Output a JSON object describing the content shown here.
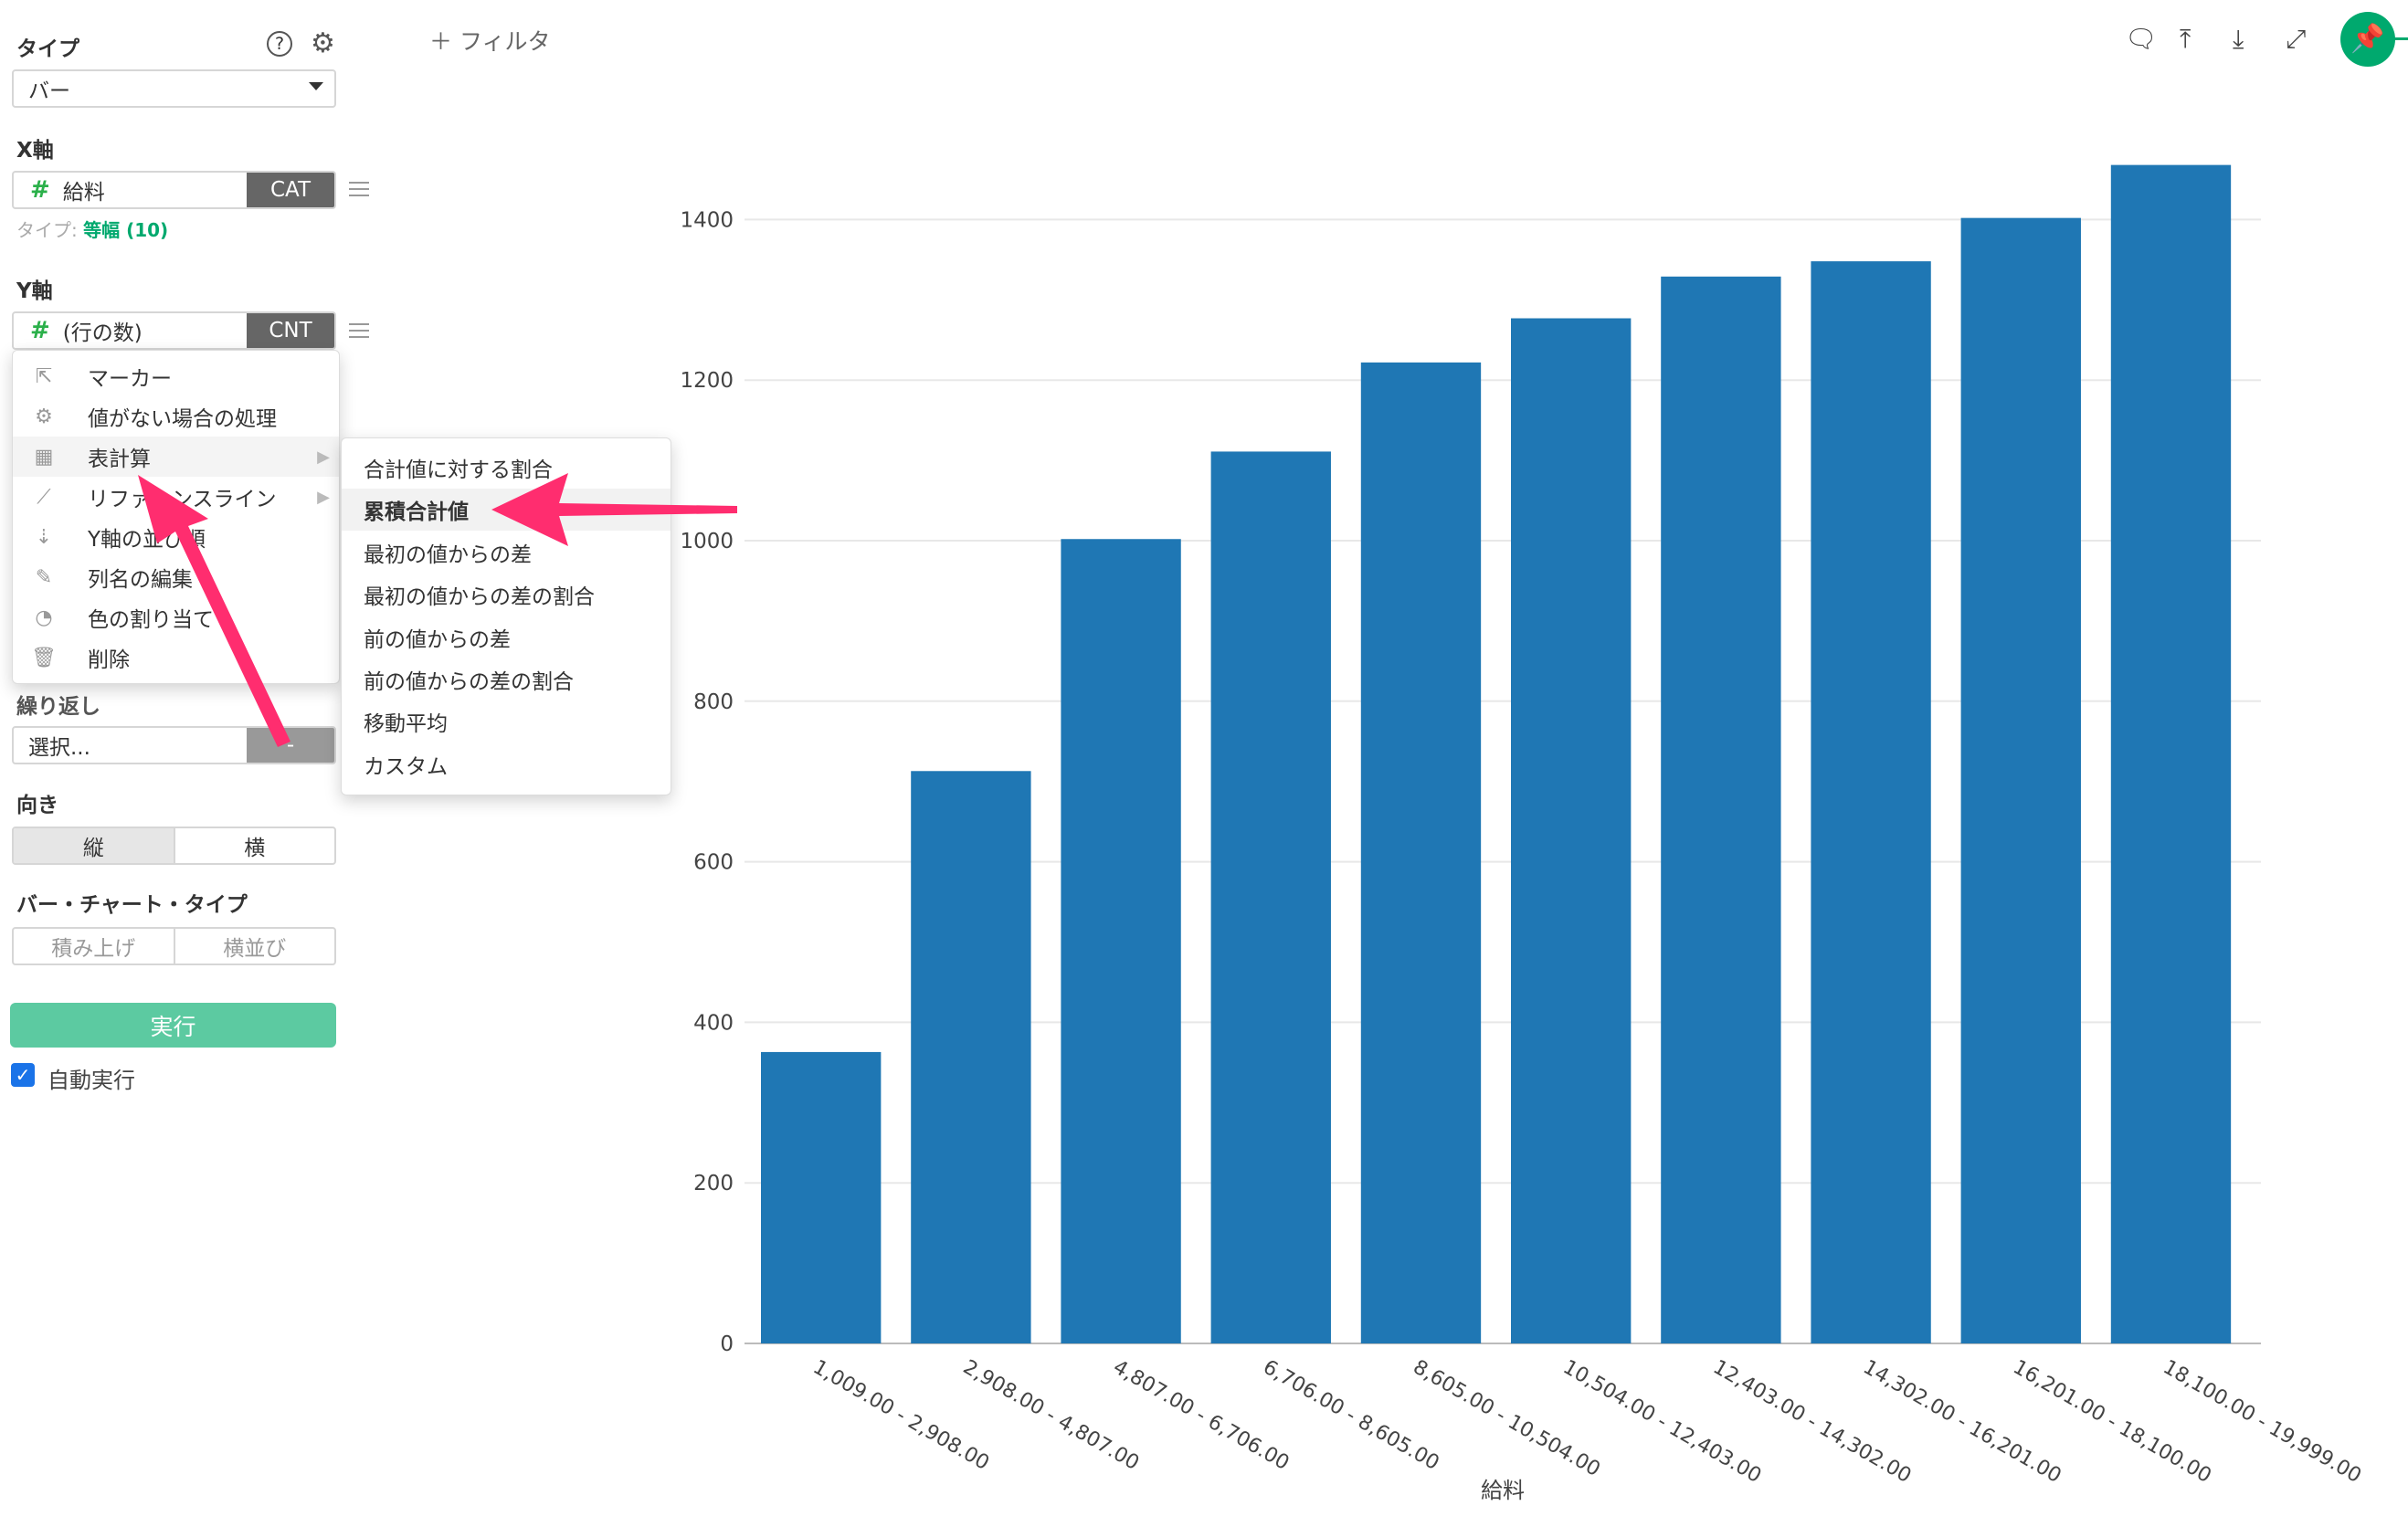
{
  "sidebar": {
    "type_label": "タイプ",
    "type_value": "バー",
    "x_axis_label": "X軸",
    "x_field": "給料",
    "x_tag": "CAT",
    "x_type_prefix": "タイプ:",
    "x_type_value": "等幅 (10)",
    "y_axis_label": "Y軸",
    "y_field": "(行の数)",
    "y_tag": "CNT",
    "repeat_label": "繰り返し",
    "repeat_placeholder": "選択...",
    "repeat_tag": "-",
    "orientation_label": "向き",
    "orientation_options": [
      "縦",
      "横"
    ],
    "bar_type_label": "バー・チャート・タイプ",
    "bar_type_options": [
      "積み上げ",
      "横並び"
    ],
    "run_label": "実行",
    "auto_run_label": "自動実行",
    "auto_run_checked": true
  },
  "context_menu": {
    "items": [
      {
        "label": "マーカー",
        "icon": "cursor-icon"
      },
      {
        "label": "値がない場合の処理",
        "icon": "gear-icon"
      },
      {
        "label": "表計算",
        "icon": "table-icon"
      },
      {
        "label": "リファレンスライン",
        "icon": "line-chart-icon"
      },
      {
        "label": "Y軸の並び順",
        "icon": "sort-icon"
      },
      {
        "label": "列名の編集",
        "icon": "edit-icon"
      },
      {
        "label": "色の割り当て",
        "icon": "palette-icon"
      },
      {
        "label": "削除",
        "icon": "trash-icon"
      }
    ],
    "submenu": [
      "合計値に対する割合",
      "累積合計値",
      "最初の値からの差",
      "最初の値からの差の割合",
      "前の値からの差",
      "前の値からの差の割合",
      "移動平均",
      "カスタム"
    ],
    "submenu_selected": "累積合計値"
  },
  "toolbar": {
    "filter_label": "フィルタ"
  },
  "colors": {
    "bar": "#1f77b4",
    "accent": "#00a96e",
    "run_button": "#5ccaa1",
    "arrow": "#ff2d6f"
  },
  "chart_data": {
    "type": "bar",
    "categories": [
      "1,009.00 - 2,908.00",
      "2,908.00 - 4,807.00",
      "4,807.00 - 6,706.00",
      "6,706.00 - 8,605.00",
      "8,605.00 - 10,504.00",
      "10,504.00 - 12,403.00",
      "12,403.00 - 14,302.00",
      "14,302.00 - 16,201.00",
      "16,201.00 - 18,100.00",
      "18,100.00 - 19,999.00"
    ],
    "values": [
      363,
      713,
      1002,
      1111,
      1222,
      1277,
      1329,
      1348,
      1402,
      1468
    ],
    "xlabel": "給料",
    "ylabel": "",
    "ylim": [
      0,
      1500
    ],
    "yticks": [
      0,
      200,
      400,
      600,
      800,
      1000,
      1200,
      1400
    ],
    "grid": true
  }
}
